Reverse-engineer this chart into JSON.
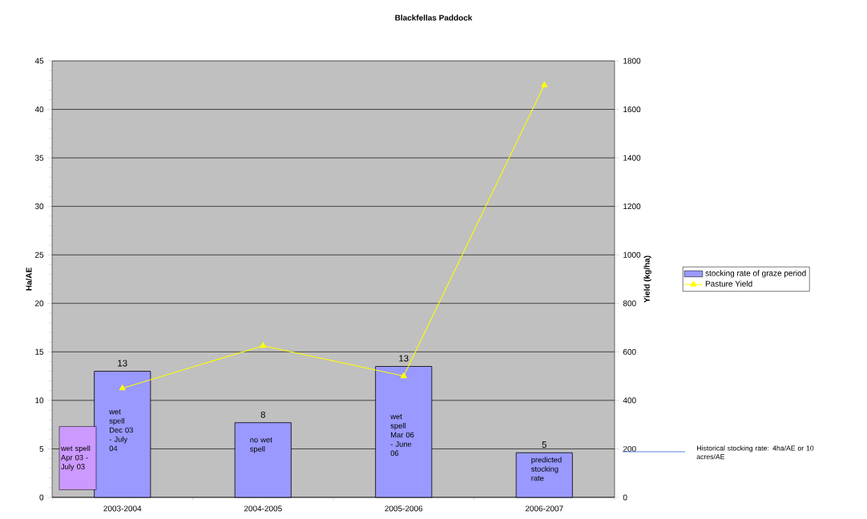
{
  "chart_data": {
    "type": "bar",
    "title": "Blackfellas Paddock",
    "ylabel": "Ha/AE",
    "y2label": "Yield (kg/ha)",
    "categories": [
      "2003-2004",
      "2004-2005",
      "2005-2006",
      "2006-2007"
    ],
    "series": [
      {
        "name": "stocking rate of graze period",
        "color": "#9999ff",
        "values": [
          13.0,
          7.7,
          13.5,
          4.6
        ],
        "value_labels": [
          "13",
          "8",
          "13",
          "5"
        ]
      },
      {
        "name": "Pasture Yield",
        "type": "line",
        "axis": "y2",
        "color": "#ffff00",
        "values": [
          450,
          625,
          500,
          1700
        ],
        "marker": "triangle",
        "line_style": "solid"
      }
    ],
    "ylim": [
      0,
      45
    ],
    "yticks": [
      0,
      5,
      10,
      15,
      20,
      25,
      30,
      35,
      40,
      45
    ],
    "y2lim": [
      0,
      1800
    ],
    "y2ticks": [
      0,
      200,
      400,
      600,
      800,
      1000,
      1200,
      1400,
      1600,
      1800
    ],
    "grid": "y",
    "legend": "right",
    "annotations": [
      "wet spell Dec 03 - July 04",
      "no wet spell",
      "wet spell Mar 06 - June 06",
      "predicted stocking rate",
      "wet spell Apr 03 - July 03",
      "Historical stocking rate: 4ha/AE or 10 acres/AE"
    ]
  }
}
